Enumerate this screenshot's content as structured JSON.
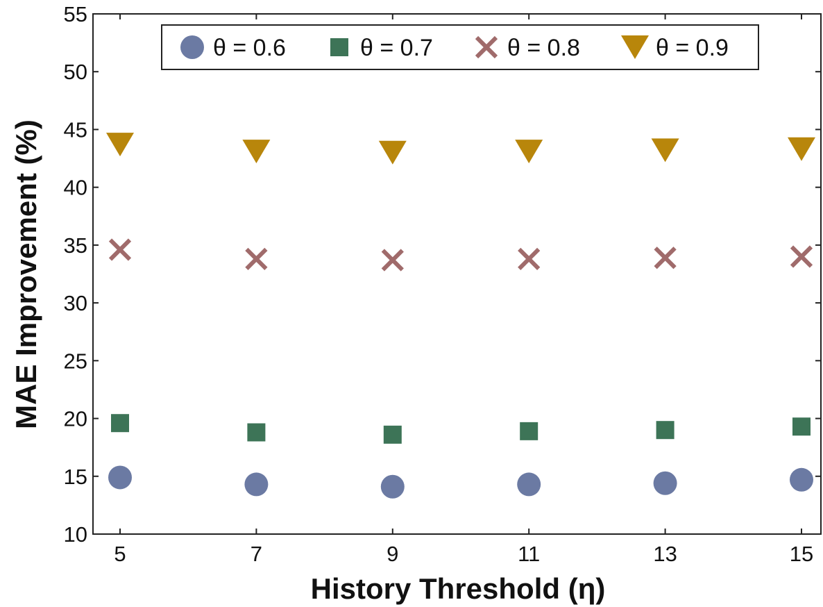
{
  "chart_data": {
    "type": "scatter",
    "title": "",
    "xlabel": "History Threshold (η)",
    "ylabel": "MAE Improvement (%)",
    "x": [
      5,
      7,
      9,
      11,
      13,
      15
    ],
    "xticks": [
      "5",
      "7",
      "9",
      "11",
      "13",
      "15"
    ],
    "yticks": [
      "10",
      "15",
      "20",
      "25",
      "30",
      "35",
      "40",
      "45",
      "50",
      "55"
    ],
    "ylim": [
      10,
      55
    ],
    "grid": false,
    "legend_position": "top",
    "series": [
      {
        "name": "θ = 0.6",
        "marker": "circle",
        "color": "#6b7aa3",
        "values": [
          14.9,
          14.3,
          14.1,
          14.3,
          14.4,
          14.7
        ]
      },
      {
        "name": "θ = 0.7",
        "marker": "square",
        "color": "#3d7457",
        "values": [
          19.6,
          18.8,
          18.6,
          18.9,
          19.0,
          19.3
        ]
      },
      {
        "name": "θ = 0.8",
        "marker": "x",
        "color": "#a06b6b",
        "values": [
          34.6,
          33.8,
          33.7,
          33.8,
          33.9,
          34.0
        ]
      },
      {
        "name": "θ = 0.9",
        "marker": "triangle-down",
        "color": "#b8860b",
        "values": [
          43.7,
          43.1,
          43.0,
          43.1,
          43.2,
          43.3
        ]
      }
    ]
  }
}
